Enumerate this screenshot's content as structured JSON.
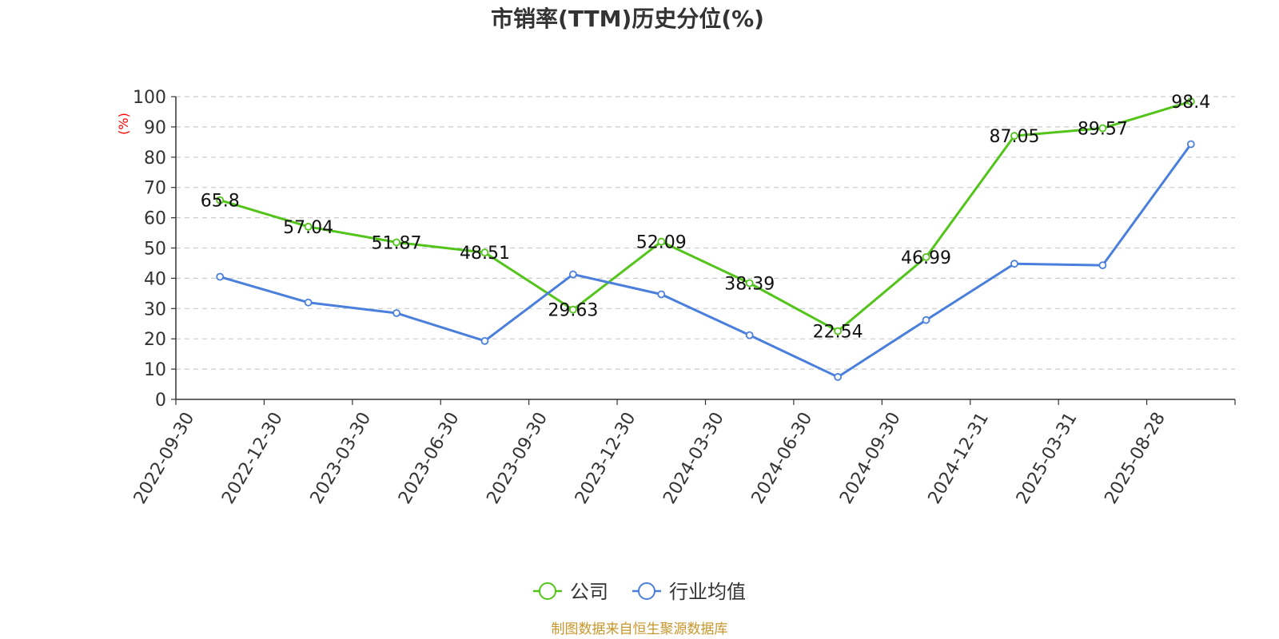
{
  "chart_data": {
    "type": "line",
    "title": "市销率(TTM)历史分位(%)",
    "ylabel": "(%)",
    "xlabel": "",
    "ylim": [
      0,
      100
    ],
    "yticks": [
      0,
      10,
      20,
      30,
      40,
      50,
      60,
      70,
      80,
      90,
      100
    ],
    "grid": true,
    "legend_position": "bottom-center",
    "categories": [
      "2022-09-30",
      "2022-12-30",
      "2023-03-30",
      "2023-06-30",
      "2023-09-30",
      "2023-12-30",
      "2024-03-30",
      "2024-06-30",
      "2024-09-30",
      "2024-12-31",
      "2025-03-31",
      "2025-08-28"
    ],
    "series": [
      {
        "name": "公司",
        "color": "#52c41a",
        "show_labels": true,
        "values": [
          65.8,
          57.04,
          51.87,
          48.51,
          29.63,
          52.09,
          38.39,
          22.54,
          46.99,
          87.05,
          89.57,
          98.4
        ],
        "labels": [
          "65.8",
          "57.04",
          "51.87",
          "48.51",
          "29.63",
          "52.09",
          "38.39",
          "22.54",
          "46.99",
          "87.05",
          "89.57",
          "98.4"
        ]
      },
      {
        "name": "行业均值",
        "color": "#4a7fdc",
        "show_labels": false,
        "values": [
          40.5,
          32.0,
          28.5,
          19.3,
          41.3,
          34.7,
          21.2,
          7.4,
          26.2,
          44.8,
          44.3,
          84.3
        ]
      }
    ]
  },
  "footer": {
    "source": "制图数据来自恒生聚源数据库"
  }
}
